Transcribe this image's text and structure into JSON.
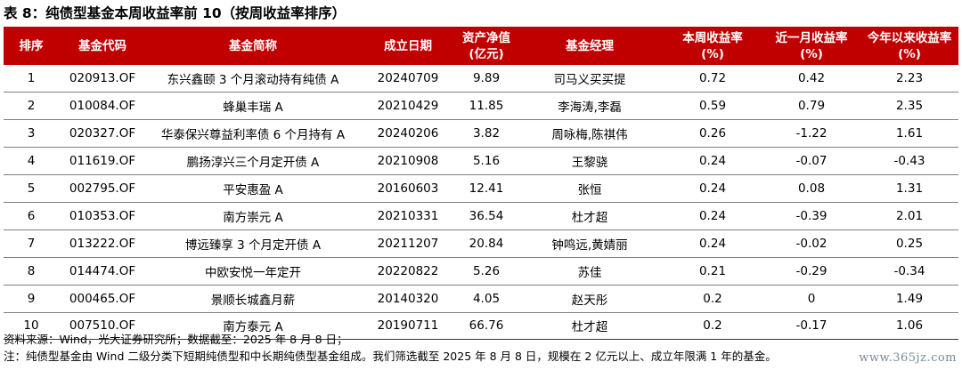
{
  "title": "表 8：纯债型基金本周收益率前 10（按周收益率排序）",
  "table": {
    "headers": [
      {
        "l1": "排序",
        "l2": ""
      },
      {
        "l1": "基金代码",
        "l2": ""
      },
      {
        "l1": "基金简称",
        "l2": ""
      },
      {
        "l1": "成立日期",
        "l2": ""
      },
      {
        "l1": "资产净值",
        "l2": "(亿元)"
      },
      {
        "l1": "基金经理",
        "l2": ""
      },
      {
        "l1": "本周收益率",
        "l2": "(%)"
      },
      {
        "l1": "近一月收益率",
        "l2": "(%)"
      },
      {
        "l1": "今年以来收益率",
        "l2": "(%)"
      }
    ],
    "rows": [
      [
        "1",
        "020913.OF",
        "东兴鑫颐 3 个月滚动持有纯债 A",
        "20240709",
        "9.89",
        "司马义买买提",
        "0.72",
        "0.42",
        "2.23"
      ],
      [
        "2",
        "010084.OF",
        "蜂巢丰瑞 A",
        "20210429",
        "11.85",
        "李海涛,李磊",
        "0.59",
        "0.79",
        "2.35"
      ],
      [
        "3",
        "020327.OF",
        "华泰保兴尊益利率债 6 个月持有 A",
        "20240206",
        "3.82",
        "周咏梅,陈祺伟",
        "0.26",
        "-1.22",
        "1.61"
      ],
      [
        "4",
        "011619.OF",
        "鹏扬淳兴三个月定开债 A",
        "20210908",
        "5.16",
        "王黎骁",
        "0.24",
        "-0.07",
        "-0.43"
      ],
      [
        "5",
        "002795.OF",
        "平安惠盈 A",
        "20160603",
        "12.41",
        "张恒",
        "0.24",
        "0.08",
        "1.31"
      ],
      [
        "6",
        "010353.OF",
        "南方崇元 A",
        "20210331",
        "36.54",
        "杜才超",
        "0.24",
        "-0.39",
        "2.01"
      ],
      [
        "7",
        "013222.OF",
        "博远臻享 3 个月定开债 A",
        "20211207",
        "20.84",
        "钟鸣远,黄婧丽",
        "0.24",
        "-0.02",
        "0.25"
      ],
      [
        "8",
        "014474.OF",
        "中欧安悦一年定开",
        "20220822",
        "5.26",
        "苏佳",
        "0.21",
        "-0.29",
        "-0.34"
      ],
      [
        "9",
        "000465.OF",
        "景顺长城鑫月薪",
        "20140320",
        "4.05",
        "赵天彤",
        "0.2",
        "0",
        "1.49"
      ],
      [
        "10",
        "007510.OF",
        "南方泰元 A",
        "20190711",
        "66.76",
        "杜才超",
        "0.2",
        "-0.17",
        "1.06"
      ]
    ]
  },
  "notes": {
    "source": "资料来源：Wind，光大证券研究所；数据截至：2025 年 8 月 8 日；",
    "note": "注：纯债型基金由 Wind 二级分类下短期纯债型和中长期纯债型基金组成。我们筛选截至 2025 年 8 月 8 日，规模在 2 亿元以上、成立年限满 1 年的基金。"
  },
  "watermark": "www.365jz.com",
  "colors": {
    "header_bg": "#c00000",
    "header_text": "#ffffff"
  }
}
